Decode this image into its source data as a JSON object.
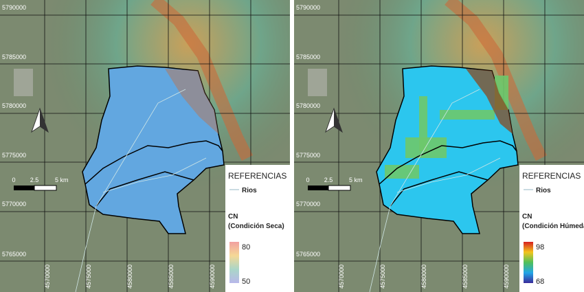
{
  "panels": [
    {
      "y_labels": [
        "5790000",
        "5785000",
        "5780000",
        "5775000",
        "5770000",
        "5765000"
      ],
      "x_labels": [
        "4570000",
        "4575000",
        "4580000",
        "4585000",
        "4590000"
      ],
      "scale": [
        "0",
        "2.5",
        "5 km"
      ],
      "legend": {
        "title": "REFERENCIAS",
        "rivers": "Rios",
        "variable": "CN",
        "condition": "(Condición Seca)",
        "max": "80",
        "min": "50"
      }
    },
    {
      "y_labels": [
        "5790000",
        "5785000",
        "5780000",
        "5775000",
        "5770000",
        "5765000"
      ],
      "x_labels": [
        "4570000",
        "4575000",
        "4580000",
        "4585000",
        "4590000"
      ],
      "scale": [
        "0",
        "2.5",
        "5 km"
      ],
      "legend": {
        "title": "REFERENCIAS",
        "rivers": "Rios",
        "variable": "CN",
        "condition": "(Condición Húmeda)",
        "max": "98",
        "min": "68"
      }
    }
  ]
}
